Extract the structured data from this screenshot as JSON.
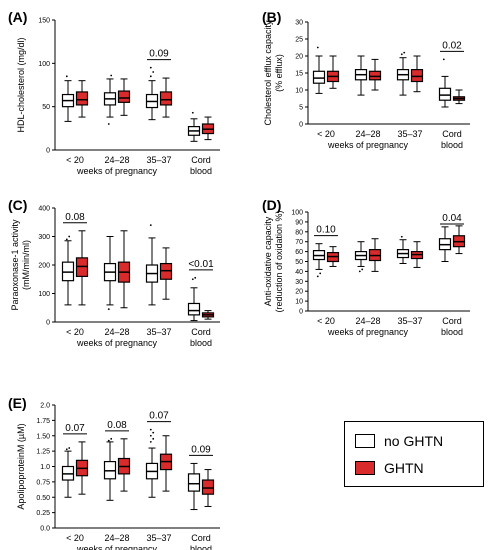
{
  "legend": {
    "items": [
      {
        "label": "no GHTN",
        "color": "#ffffff"
      },
      {
        "label": "GHTN",
        "color": "#d92b2b"
      }
    ]
  },
  "chart_data": [
    {
      "panel": "(A)",
      "type": "box",
      "ylabel": "HDL-cholesterol (mg/dl)",
      "xlabel": "weeks of pregnancy",
      "ylim": [
        0,
        150
      ],
      "yticks": [
        0,
        50,
        100,
        150
      ],
      "categories": [
        "< 20",
        "24–28",
        "35–37",
        "Cord blood"
      ],
      "series": [
        {
          "name": "no GHTN",
          "boxes": [
            {
              "min": 33,
              "q1": 50,
              "median": 57,
              "q3": 64,
              "max": 80,
              "outliers": [
                85
              ]
            },
            {
              "min": 38,
              "q1": 52,
              "median": 59,
              "q3": 66,
              "max": 82,
              "outliers": [
                30,
                86
              ]
            },
            {
              "min": 35,
              "q1": 49,
              "median": 56,
              "q3": 64,
              "max": 80,
              "outliers": [
                85,
                90,
                95
              ]
            },
            {
              "min": 10,
              "q1": 17,
              "median": 22,
              "q3": 27,
              "max": 36,
              "outliers": [
                43
              ]
            }
          ]
        },
        {
          "name": "GHTN",
          "boxes": [
            {
              "min": 38,
              "q1": 52,
              "median": 58,
              "q3": 67,
              "max": 80,
              "outliers": []
            },
            {
              "min": 40,
              "q1": 55,
              "median": 60,
              "q3": 68,
              "max": 82,
              "outliers": []
            },
            {
              "min": 38,
              "q1": 52,
              "median": 58,
              "q3": 67,
              "max": 83,
              "outliers": []
            },
            {
              "min": 12,
              "q1": 19,
              "median": 24,
              "q3": 30,
              "max": 38,
              "outliers": []
            }
          ]
        }
      ],
      "annotations": [
        {
          "category": 2,
          "text": "0.09"
        }
      ]
    },
    {
      "panel": "(B)",
      "type": "box",
      "ylabel": "Cholesterol efflux capacity (% efflux)",
      "xlabel": "weeks of pregnancy",
      "ylim": [
        0,
        30
      ],
      "yticks": [
        0,
        5,
        10,
        15,
        20,
        25,
        30
      ],
      "categories": [
        "< 20",
        "24–28",
        "35–37",
        "Cord blood"
      ],
      "series": [
        {
          "name": "no GHTN",
          "boxes": [
            {
              "min": 9,
              "q1": 12,
              "median": 13.5,
              "q3": 15.5,
              "max": 20,
              "outliers": [
                22.5
              ]
            },
            {
              "min": 8.5,
              "q1": 13,
              "median": 14.5,
              "q3": 16,
              "max": 20,
              "outliers": []
            },
            {
              "min": 8.5,
              "q1": 13,
              "median": 14.5,
              "q3": 16,
              "max": 19.5,
              "outliers": [
                20.5,
                21
              ]
            },
            {
              "min": 5,
              "q1": 7,
              "median": 8.5,
              "q3": 10.5,
              "max": 14,
              "outliers": [
                19
              ]
            }
          ]
        },
        {
          "name": "GHTN",
          "boxes": [
            {
              "min": 10.5,
              "q1": 12.5,
              "median": 14,
              "q3": 15.5,
              "max": 20,
              "outliers": []
            },
            {
              "min": 10,
              "q1": 13,
              "median": 14,
              "q3": 15.5,
              "max": 19,
              "outliers": []
            },
            {
              "min": 9.5,
              "q1": 12.5,
              "median": 14,
              "q3": 16,
              "max": 20,
              "outliers": []
            },
            {
              "min": 6,
              "q1": 7,
              "median": 7.5,
              "q3": 8,
              "max": 10,
              "outliers": []
            }
          ]
        }
      ],
      "annotations": [
        {
          "category": 3,
          "text": "0.02"
        }
      ]
    },
    {
      "panel": "(C)",
      "type": "box",
      "ylabel": "Paraoxonase-1 activity (mM/min/ml)",
      "xlabel": "weeks of pregnancy",
      "ylim": [
        0,
        400
      ],
      "yticks": [
        0,
        100,
        200,
        300,
        400
      ],
      "categories": [
        "< 20",
        "24–28",
        "35–37",
        "Cord blood"
      ],
      "series": [
        {
          "name": "no GHTN",
          "boxes": [
            {
              "min": 60,
              "q1": 145,
              "median": 175,
              "q3": 210,
              "max": 285,
              "outliers": [
                290,
                300
              ]
            },
            {
              "min": 60,
              "q1": 145,
              "median": 175,
              "q3": 205,
              "max": 300,
              "outliers": [
                45
              ]
            },
            {
              "min": 60,
              "q1": 140,
              "median": 170,
              "q3": 200,
              "max": 295,
              "outliers": [
                340
              ]
            },
            {
              "min": 5,
              "q1": 25,
              "median": 40,
              "q3": 65,
              "max": 120,
              "outliers": [
                150,
                155
              ]
            }
          ]
        },
        {
          "name": "GHTN",
          "boxes": [
            {
              "min": 60,
              "q1": 160,
              "median": 195,
              "q3": 225,
              "max": 320,
              "outliers": []
            },
            {
              "min": 50,
              "q1": 140,
              "median": 175,
              "q3": 210,
              "max": 320,
              "outliers": []
            },
            {
              "min": 80,
              "q1": 150,
              "median": 180,
              "q3": 205,
              "max": 260,
              "outliers": []
            },
            {
              "min": 10,
              "q1": 18,
              "median": 25,
              "q3": 32,
              "max": 40,
              "outliers": []
            }
          ]
        }
      ],
      "annotations": [
        {
          "category": 0,
          "text": "0.08"
        },
        {
          "category": 3,
          "text": "<0.01"
        }
      ]
    },
    {
      "panel": "(D)",
      "type": "box",
      "ylabel": "Anti-oxidative capacity (reduction of oxidation %)",
      "xlabel": "weeks of pregnancy",
      "ylim": [
        0,
        100
      ],
      "yticks": [
        0,
        10,
        20,
        30,
        40,
        50,
        60,
        70,
        80,
        90,
        100
      ],
      "categories": [
        "< 20",
        "24–28",
        "35–37",
        "Cord blood"
      ],
      "series": [
        {
          "name": "no GHTN",
          "boxes": [
            {
              "min": 42,
              "q1": 52,
              "median": 56,
              "q3": 61,
              "max": 68,
              "outliers": [
                35,
                38
              ]
            },
            {
              "min": 45,
              "q1": 52,
              "median": 56,
              "q3": 60,
              "max": 70,
              "outliers": [
                40,
                42
              ]
            },
            {
              "min": 48,
              "q1": 54,
              "median": 58,
              "q3": 62,
              "max": 72,
              "outliers": [
                75
              ]
            },
            {
              "min": 50,
              "q1": 62,
              "median": 67,
              "q3": 73,
              "max": 85,
              "outliers": []
            }
          ]
        },
        {
          "name": "GHTN",
          "boxes": [
            {
              "min": 45,
              "q1": 50,
              "median": 55,
              "q3": 59,
              "max": 65,
              "outliers": []
            },
            {
              "min": 40,
              "q1": 51,
              "median": 56,
              "q3": 62,
              "max": 73,
              "outliers": []
            },
            {
              "min": 44,
              "q1": 53,
              "median": 57,
              "q3": 60,
              "max": 70,
              "outliers": []
            },
            {
              "min": 58,
              "q1": 65,
              "median": 70,
              "q3": 76,
              "max": 86,
              "outliers": []
            }
          ]
        }
      ],
      "annotations": [
        {
          "category": 0,
          "text": "0.10"
        },
        {
          "category": 3,
          "text": "0.04"
        }
      ]
    },
    {
      "panel": "(E)",
      "type": "box",
      "ylabel": "ApolipoproteinM (µM)",
      "xlabel": "weeks of pregnancy",
      "ylim": [
        0,
        2.0
      ],
      "yticks": [
        0.0,
        0.25,
        0.5,
        0.75,
        1.0,
        1.25,
        1.5,
        1.75,
        2.0
      ],
      "categories": [
        "< 20",
        "24–28",
        "35–37",
        "Cord blood"
      ],
      "series": [
        {
          "name": "no GHTN",
          "boxes": [
            {
              "min": 0.5,
              "q1": 0.78,
              "median": 0.88,
              "q3": 1.0,
              "max": 1.25,
              "outliers": [
                1.28,
                1.3
              ]
            },
            {
              "min": 0.45,
              "q1": 0.8,
              "median": 0.93,
              "q3": 1.08,
              "max": 1.4,
              "outliers": [
                1.42,
                1.45
              ]
            },
            {
              "min": 0.5,
              "q1": 0.8,
              "median": 0.92,
              "q3": 1.05,
              "max": 1.3,
              "outliers": [
                1.4,
                1.45,
                1.5,
                1.55,
                1.6
              ]
            },
            {
              "min": 0.3,
              "q1": 0.6,
              "median": 0.72,
              "q3": 0.88,
              "max": 1.05,
              "outliers": []
            }
          ]
        },
        {
          "name": "GHTN",
          "boxes": [
            {
              "min": 0.55,
              "q1": 0.85,
              "median": 0.97,
              "q3": 1.1,
              "max": 1.4,
              "outliers": []
            },
            {
              "min": 0.6,
              "q1": 0.88,
              "median": 1.0,
              "q3": 1.13,
              "max": 1.45,
              "outliers": []
            },
            {
              "min": 0.6,
              "q1": 0.95,
              "median": 1.08,
              "q3": 1.2,
              "max": 1.5,
              "outliers": []
            },
            {
              "min": 0.35,
              "q1": 0.55,
              "median": 0.65,
              "q3": 0.78,
              "max": 0.95,
              "outliers": []
            }
          ]
        }
      ],
      "annotations": [
        {
          "category": 0,
          "text": "0.07"
        },
        {
          "category": 1,
          "text": "0.08"
        },
        {
          "category": 2,
          "text": "0.07"
        },
        {
          "category": 3,
          "text": "0.09"
        }
      ]
    }
  ]
}
